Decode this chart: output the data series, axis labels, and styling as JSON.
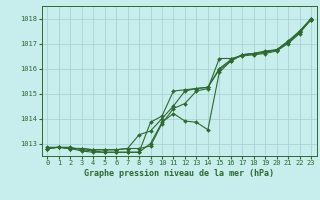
{
  "xlabel": "Graphe pression niveau de la mer (hPa)",
  "ylim": [
    1012.5,
    1018.5
  ],
  "xlim": [
    -0.5,
    23.5
  ],
  "yticks": [
    1013,
    1014,
    1015,
    1016,
    1017,
    1018
  ],
  "xticks": [
    0,
    1,
    2,
    3,
    4,
    5,
    6,
    7,
    8,
    9,
    10,
    11,
    12,
    13,
    14,
    15,
    16,
    17,
    18,
    19,
    20,
    21,
    22,
    23
  ],
  "bg_color": "#c8eded",
  "grid_color": "#aad4d4",
  "line_color": "#2d6a2d",
  "series": [
    [
      1012.8,
      1012.85,
      1012.8,
      1012.8,
      1012.75,
      1012.75,
      1012.75,
      1012.8,
      1012.8,
      1012.9,
      1013.8,
      1014.4,
      1014.6,
      1015.1,
      1015.2,
      1016.4,
      1016.4,
      1016.5,
      1016.55,
      1016.6,
      1016.7,
      1017.0,
      1017.4,
      1018.0
    ],
    [
      1012.8,
      1012.85,
      1012.8,
      1012.8,
      1012.75,
      1012.75,
      1012.75,
      1012.8,
      1013.35,
      1013.5,
      1014.0,
      1014.5,
      1015.1,
      1015.2,
      1015.25,
      1015.95,
      1016.3,
      1016.55,
      1016.6,
      1016.7,
      1016.75,
      1017.1,
      1017.5,
      1018.0
    ],
    [
      1012.8,
      1012.85,
      1012.8,
      1012.7,
      1012.65,
      1012.65,
      1012.65,
      1012.65,
      1012.65,
      1013.85,
      1014.1,
      1015.1,
      1015.15,
      1015.2,
      1015.25,
      1016.0,
      1016.35,
      1016.55,
      1016.6,
      1016.65,
      1016.75,
      1017.05,
      1017.45,
      1017.95
    ],
    [
      1012.85,
      1012.85,
      1012.85,
      1012.75,
      1012.7,
      1012.65,
      1012.65,
      1012.65,
      1012.65,
      1013.0,
      1013.85,
      1014.2,
      1013.9,
      1013.85,
      1013.55,
      1015.85,
      1016.3,
      1016.55,
      1016.6,
      1016.65,
      1016.75,
      1017.05,
      1017.45,
      1017.95
    ]
  ]
}
